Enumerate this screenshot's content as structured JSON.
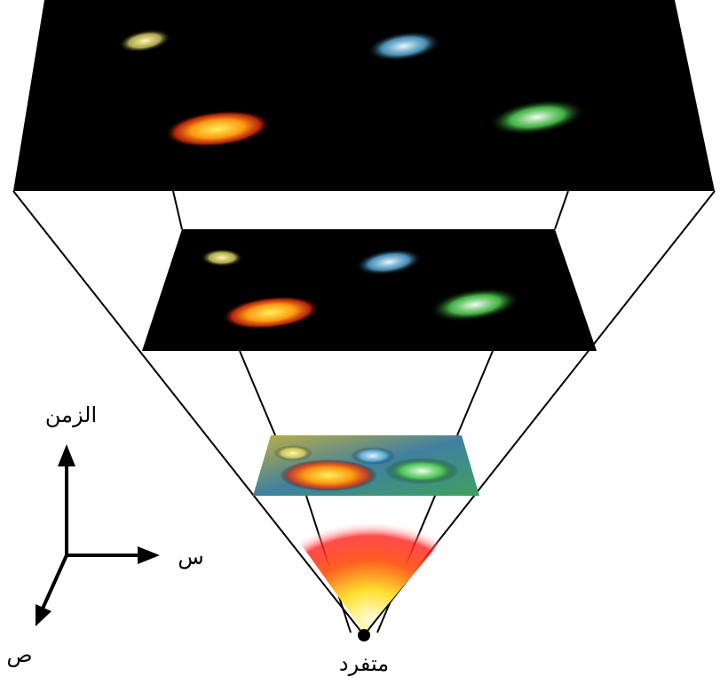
{
  "labels": {
    "time": "الزمن",
    "x_axis": "س",
    "y_axis": "ص",
    "singularity": "متفرد"
  }
}
